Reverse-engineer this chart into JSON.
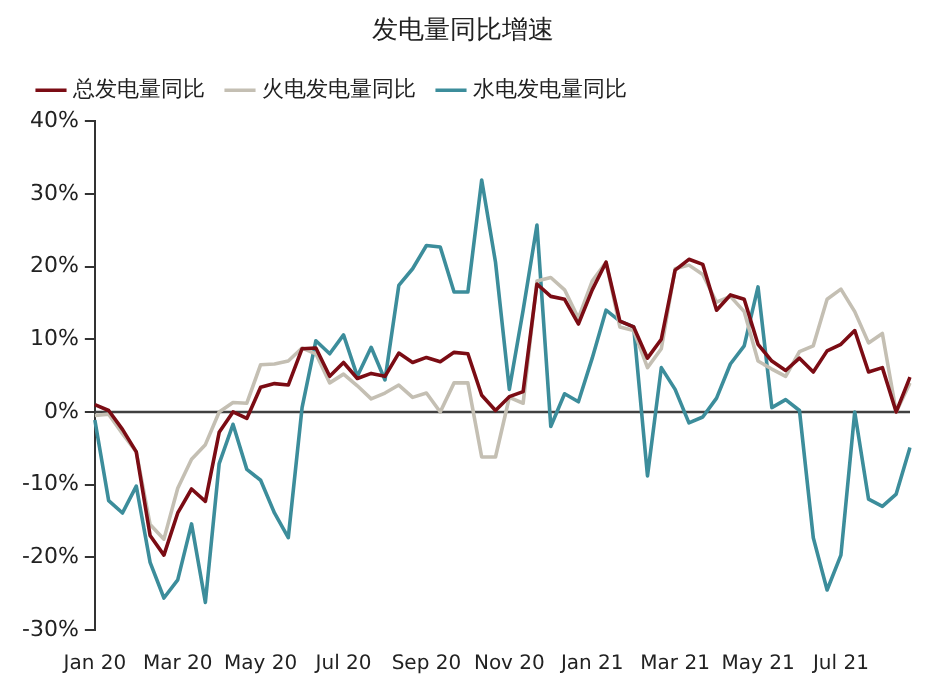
{
  "chart_data": {
    "type": "line",
    "title": "发电量同比增速",
    "categories": [
      "Jan 20",
      null,
      null,
      null,
      null,
      null,
      "Mar 20",
      null,
      null,
      null,
      null,
      null,
      "May 20",
      null,
      null,
      null,
      null,
      null,
      "Jul 20",
      null,
      null,
      null,
      null,
      null,
      "Sep 20",
      null,
      null,
      null,
      null,
      null,
      "Nov 20",
      null,
      null,
      null,
      null,
      null,
      "Jan 21",
      null,
      null,
      null,
      null,
      null,
      "Mar 21",
      null,
      null,
      null,
      null,
      null,
      "May 21",
      null,
      null,
      null,
      null,
      null,
      "Jul 21",
      null,
      null,
      null,
      null,
      null
    ],
    "series": [
      {
        "name": "总发电量同比",
        "color": "#7b0c14",
        "values": [
          1.0,
          0.2,
          -2.4,
          -5.5,
          -17,
          -19.7,
          -13.9,
          -10.6,
          -12.3,
          -2.8,
          0,
          -0.9,
          3.4,
          3.9,
          3.7,
          8.7,
          8.8,
          4.9,
          6.8,
          4.6,
          5.3,
          4.9,
          8.1,
          6.8,
          7.5,
          6.9,
          8.2,
          8.0,
          2.3,
          0.2,
          2.1,
          2.8,
          17.6,
          15.9,
          15.5,
          12.1,
          16.8,
          20.6,
          12.5,
          11.7,
          7.4,
          10.0,
          19.5,
          21.0,
          20.3,
          14.0,
          16.1,
          15.5,
          9.3,
          7.0,
          5.7,
          7.4,
          5.5,
          8.4,
          9.3,
          11.2,
          5.5,
          6.1,
          0,
          4.8
        ]
      },
      {
        "name": "火电发电量同比",
        "color": "#c4bfb3",
        "values": [
          -0.5,
          -0.3,
          -3,
          -5.5,
          -15.5,
          -17.5,
          -10.5,
          -6.5,
          -4.5,
          0,
          1.3,
          1.2,
          6.5,
          6.6,
          7.0,
          8.8,
          8.0,
          4.0,
          5.2,
          3.6,
          1.8,
          2.6,
          3.7,
          2.0,
          2.6,
          0,
          4.0,
          4.0,
          -6.2,
          -6.2,
          2.0,
          1.2,
          18.0,
          18.5,
          16.8,
          12.9,
          18.0,
          20.6,
          11.7,
          11.2,
          6.1,
          8.7,
          19.7,
          20.2,
          18.9,
          15.1,
          15.9,
          13.8,
          7.0,
          5.9,
          4.9,
          8.3,
          9.1,
          15.5,
          16.9,
          13.8,
          9.5,
          10.8,
          0,
          4.0
        ]
      },
      {
        "name": "水电发电量同比",
        "color": "#3c8d9b",
        "values": [
          -1.1,
          -12.2,
          -13.9,
          -10.2,
          -20.7,
          -25.6,
          -23.1,
          -15.4,
          -26.2,
          -7.1,
          -1.7,
          -7.9,
          -9.4,
          -13.9,
          -17.3,
          0.6,
          9.8,
          8.0,
          10.6,
          4.9,
          8.9,
          4.4,
          17.4,
          19.7,
          22.9,
          22.7,
          16.5,
          16.5,
          31.9,
          20.6,
          3.1,
          14.0,
          25.7,
          -2.0,
          2.5,
          1.4,
          7.4,
          14.0,
          12.5,
          11.7,
          -8.8,
          6.1,
          3.1,
          -1.5,
          -0.7,
          1.9,
          6.6,
          9.1,
          17.2,
          0.6,
          1.7,
          0.2,
          -17.3,
          -24.5,
          -19.7,
          0,
          -12.0,
          -13.0,
          -11.3,
          -4.9
        ]
      }
    ],
    "ylim": [
      -30,
      40
    ],
    "yticks": [
      {
        "value": -30,
        "label": "-30%"
      },
      {
        "value": -20,
        "label": "-20%"
      },
      {
        "value": -10,
        "label": "-10%"
      },
      {
        "value": 0,
        "label": "0%"
      },
      {
        "value": 10,
        "label": "10%"
      },
      {
        "value": 20,
        "label": "20%"
      },
      {
        "value": 30,
        "label": "30%"
      },
      {
        "value": 40,
        "label": "40%"
      }
    ],
    "ref_lines": [
      {
        "axis": "y",
        "value": 0,
        "color": "#404040"
      }
    ],
    "grid": false,
    "legend": "top",
    "marker": "none",
    "line_style": "solid"
  }
}
